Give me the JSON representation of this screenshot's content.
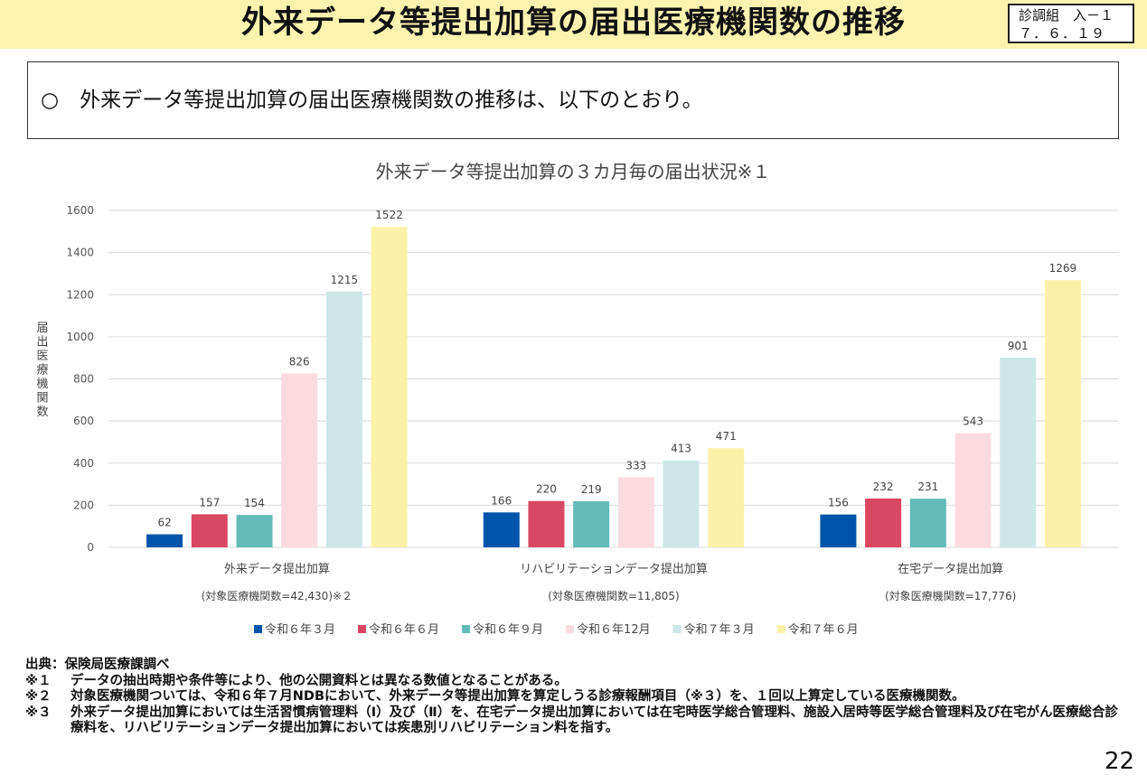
{
  "header": {
    "title": "外来データ等提出加算の届出医療機関数の推移",
    "doc_id_line1": "診調組　入－１",
    "doc_id_line2": "７．６．１９"
  },
  "summary": {
    "text": "○　外来データ等提出加算の届出医療機関数の推移は、以下のとおり。"
  },
  "chart_data": {
    "type": "bar",
    "title": "外来データ等提出加算の３カ月毎の届出状況※１",
    "ylabel": "届出医療機関数",
    "ylim": [
      0,
      1600
    ],
    "yticks": [
      0,
      200,
      400,
      600,
      800,
      1000,
      1200,
      1400,
      1600
    ],
    "grid": true,
    "legend_position": "bottom",
    "categories": [
      "外来データ提出加算",
      "リハビリテーションデータ提出加算",
      "在宅データ提出加算"
    ],
    "category_notes": [
      "(対象医療機関数=42,430)※２",
      "(対象医療機関数=11,805)",
      "(対象医療機関数=17,776)"
    ],
    "series": [
      {
        "name": "令和６年３月",
        "color": "#0055aa",
        "values": [
          62,
          166,
          156
        ]
      },
      {
        "name": "令和６年６月",
        "color": "#d94862",
        "values": [
          157,
          220,
          232
        ]
      },
      {
        "name": "令和６年９月",
        "color": "#62bbb6",
        "values": [
          154,
          219,
          231
        ]
      },
      {
        "name": "令和６年12月",
        "color": "#fcdbe0",
        "values": [
          826,
          333,
          543
        ]
      },
      {
        "name": "令和７年３月",
        "color": "#cce7e7",
        "values": [
          1215,
          413,
          901
        ]
      },
      {
        "name": "令和７年６月",
        "color": "#fdf1aa",
        "values": [
          1522,
          471,
          1269
        ]
      }
    ]
  },
  "notes": {
    "source": "出典：保険局医療課調べ",
    "items": [
      {
        "mark": "※１",
        "text": "データの抽出時期や条件等により、他の公開資料とは異なる数値となることがある。"
      },
      {
        "mark": "※２",
        "text": "対象医療機関ついては、令和６年７月NDBにおいて、外来データ等提出加算を算定しうる診療報酬項目（※３）を、１回以上算定している医療機関数。"
      },
      {
        "mark": "※３",
        "text": "外来データ提出加算においては生活習慣病管理料（Ⅰ）及び（Ⅱ）を、在宅データ提出加算においては在宅時医学総合管理料、施設入居時等医学総合管理料及び在宅がん医療総合診療料を、リハビリテーションデータ提出加算においては疾患別リハビリテーション料を指す。"
      }
    ]
  },
  "page_number": "22"
}
